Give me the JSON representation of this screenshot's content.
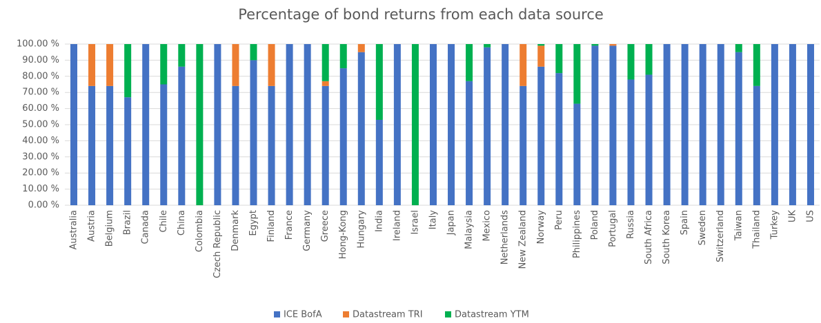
{
  "chart_data": {
    "type": "stacked_bar",
    "title": "Percentage of bond returns from each data source",
    "categories": [
      "Australia",
      "Austria",
      "Belgium",
      "Brazil",
      "Canada",
      "Chile",
      "China",
      "Colombia",
      "Czech Republic",
      "Denmark",
      "Egypt",
      "Finland",
      "France",
      "Germany",
      "Greece",
      "Hong-Kong",
      "Hungary",
      "India",
      "Ireland",
      "Israel",
      "Italy",
      "Japan",
      "Malaysia",
      "Mexico",
      "Netherlands",
      "New Zealand",
      "Norway",
      "Peru",
      "Philippines",
      "Poland",
      "Portugal",
      "Russia",
      "South Africa",
      "South Korea",
      "Spain",
      "Sweden",
      "Switzerland",
      "Taiwan",
      "Thailand",
      "Turkey",
      "UK",
      "US"
    ],
    "series": [
      {
        "name": "ICE BofA",
        "color": "#4472c4",
        "values": [
          100,
          74,
          74,
          67,
          100,
          75,
          86,
          0,
          100,
          74,
          90,
          74,
          100,
          100,
          74,
          85,
          95,
          53,
          100,
          0,
          100,
          100,
          77,
          98,
          100,
          74,
          86,
          82,
          63,
          99,
          99,
          78,
          81,
          100,
          100,
          100,
          100,
          95,
          74,
          100,
          100,
          100
        ]
      },
      {
        "name": "Datastream TRI",
        "color": "#ed7d31",
        "values": [
          0,
          26,
          26,
          0,
          0,
          0,
          0,
          0,
          0,
          26,
          0,
          26,
          0,
          0,
          3,
          0,
          5,
          0,
          0,
          0,
          0,
          0,
          0,
          0,
          0,
          26,
          13,
          0,
          0,
          0,
          1,
          0,
          0,
          0,
          0,
          0,
          0,
          0,
          0,
          0,
          0,
          0
        ]
      },
      {
        "name": "Datastream YTM",
        "color": "#00b050",
        "values": [
          0,
          0,
          0,
          33,
          0,
          25,
          14,
          100,
          0,
          0,
          10,
          0,
          0,
          0,
          23,
          15,
          0,
          47,
          0,
          100,
          0,
          0,
          23,
          2,
          0,
          0,
          1,
          18,
          37,
          1,
          0,
          22,
          19,
          0,
          0,
          0,
          0,
          5,
          26,
          0,
          0,
          0
        ]
      }
    ],
    "ylim": [
      0,
      100
    ],
    "yticks": [
      {
        "value": 0,
        "label": "0.00 %"
      },
      {
        "value": 10,
        "label": "10.00 %"
      },
      {
        "value": 20,
        "label": "20.00 %"
      },
      {
        "value": 30,
        "label": "30.00 %"
      },
      {
        "value": 40,
        "label": "40.00 %"
      },
      {
        "value": 50,
        "label": "50.00 %"
      },
      {
        "value": 60,
        "label": "60.00 %"
      },
      {
        "value": 70,
        "label": "70.00 %"
      },
      {
        "value": 80,
        "label": "80.00 %"
      },
      {
        "value": 90,
        "label": "90.00 %"
      },
      {
        "value": 100,
        "label": "100.00 %"
      }
    ],
    "grid": true,
    "legend": "bottom"
  }
}
